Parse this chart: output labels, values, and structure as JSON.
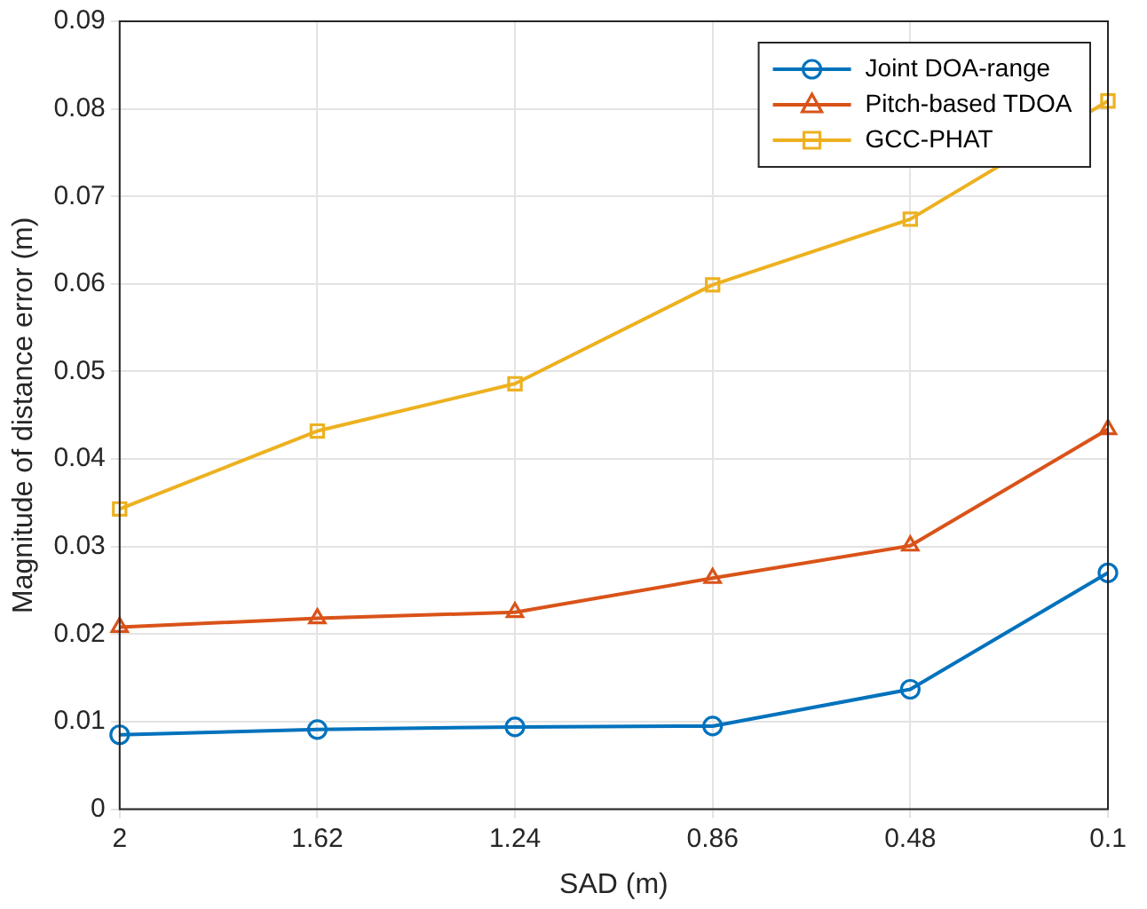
{
  "chart_data": {
    "type": "line",
    "xlabel": "SAD (m)",
    "ylabel": "Magnitude of distance error (m)",
    "categories": [
      "2",
      "1.62",
      "1.24",
      "0.86",
      "0.48",
      "0.1"
    ],
    "series": [
      {
        "name": "Joint DOA-range",
        "color": "#0072bd",
        "marker": "circle",
        "values": [
          0.0085,
          0.0091,
          0.0094,
          0.0095,
          0.0137,
          0.027
        ]
      },
      {
        "name": "Pitch-based TDOA",
        "color": "#d95319",
        "marker": "triangle",
        "values": [
          0.0208,
          0.0218,
          0.0225,
          0.0264,
          0.0301,
          0.0434
        ]
      },
      {
        "name": "GCC-PHAT",
        "color": "#edb120",
        "marker": "square",
        "values": [
          0.0343,
          0.0432,
          0.0486,
          0.0599,
          0.0674,
          0.0809
        ]
      }
    ],
    "ylim": [
      0,
      0.09
    ],
    "yticks": [
      0,
      0.01,
      0.02,
      0.03,
      0.04,
      0.05,
      0.06,
      0.07,
      0.08,
      0.09
    ],
    "grid": true,
    "legend": "top right",
    "line_style": "solid"
  }
}
